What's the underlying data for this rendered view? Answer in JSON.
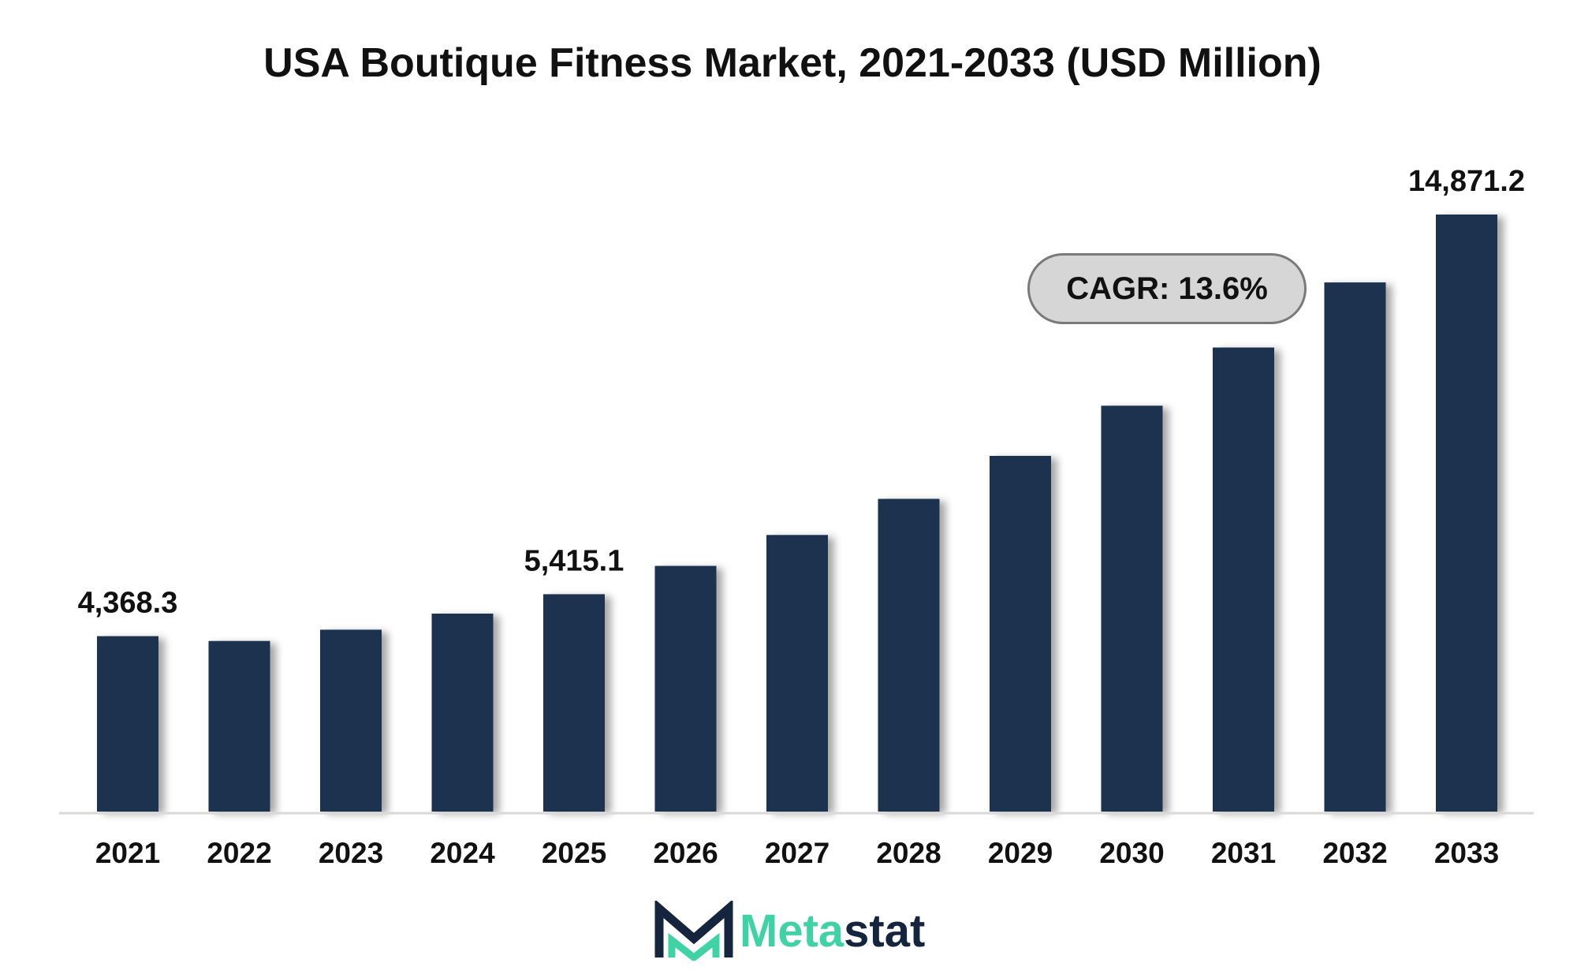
{
  "chart_data": {
    "type": "bar",
    "title": "USA Boutique Fitness Market, 2021-2033 (USD Million)",
    "xlabel": "",
    "ylabel": "",
    "categories": [
      "2021",
      "2022",
      "2023",
      "2024",
      "2025",
      "2026",
      "2027",
      "2028",
      "2029",
      "2030",
      "2031",
      "2032",
      "2033"
    ],
    "values": [
      4368.3,
      4250,
      4530,
      4930,
      5415.1,
      6120,
      6890,
      7790,
      8860,
      10110,
      11560,
      13180,
      14871.2
    ],
    "data_labels": [
      {
        "category": "2021",
        "text": "4,368.3"
      },
      {
        "category": "2025",
        "text": "5,415.1"
      },
      {
        "category": "2033",
        "text": "14,871.2"
      }
    ],
    "ylim": [
      0,
      15500
    ],
    "grid": false,
    "bar_color": "#1a3150",
    "annotation": "CAGR: 13.6%"
  },
  "logo": {
    "part1": "Meta",
    "part2": "stat",
    "accent_color": "#3fd3a3",
    "dark_color": "#14253d"
  }
}
